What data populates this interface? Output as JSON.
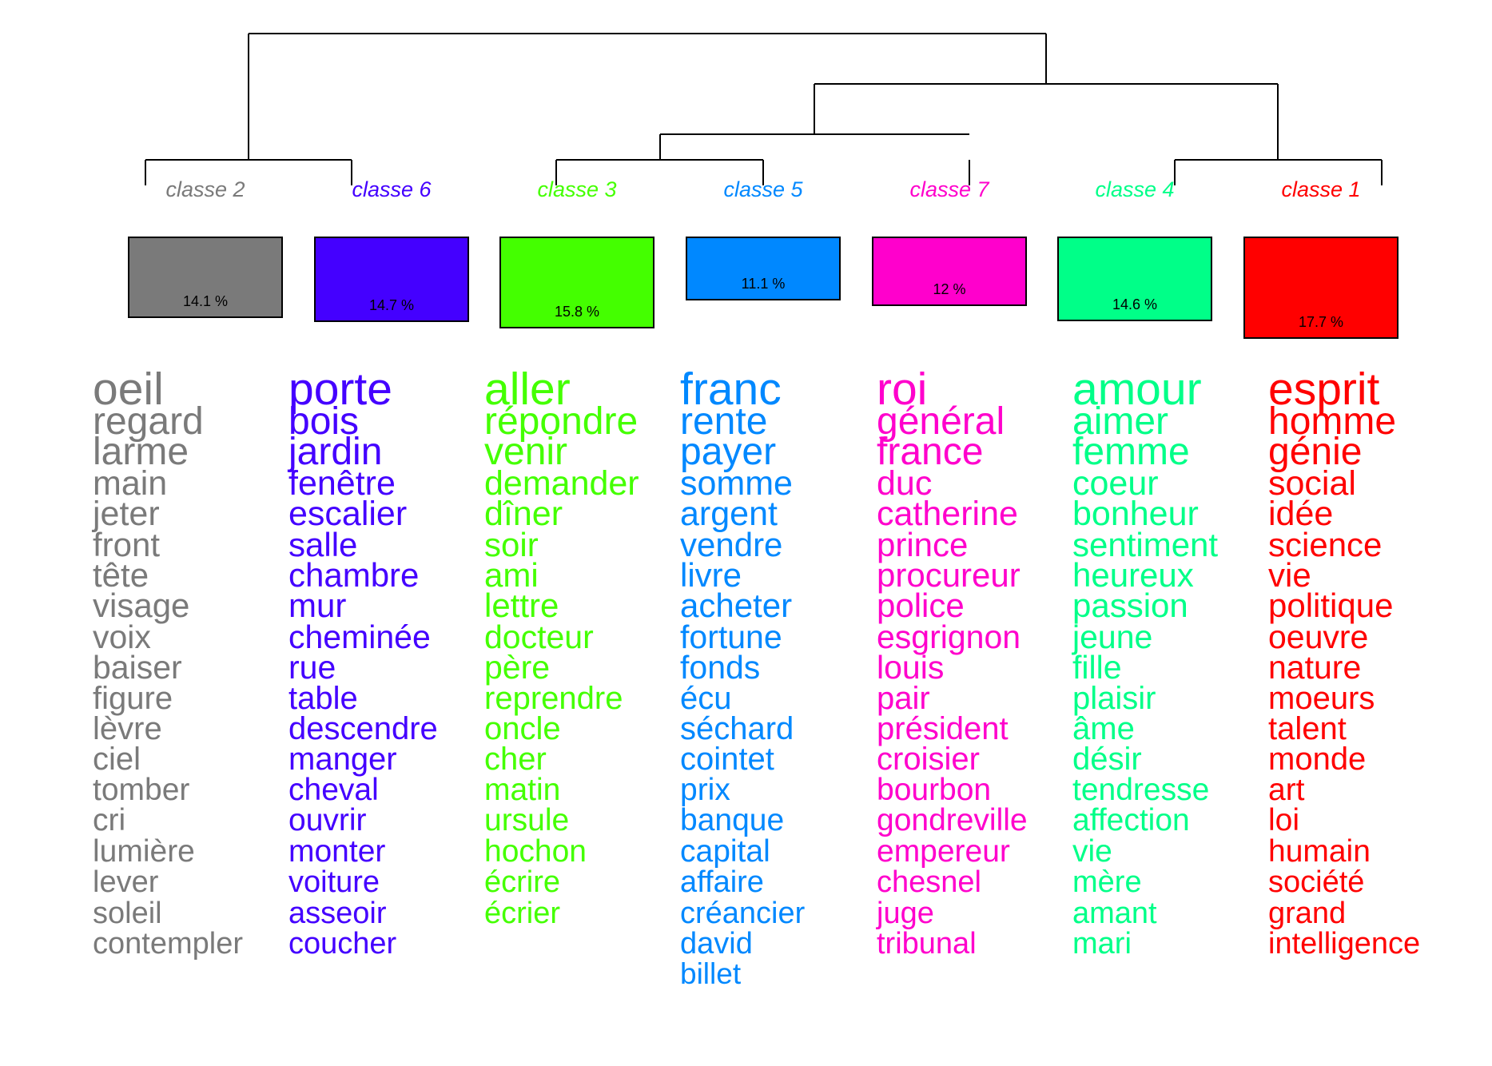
{
  "classes": [
    {
      "label": "classe  2",
      "percent": "14.1 %",
      "share": 14.1,
      "color": "#7a7a7a",
      "words": [
        "oeil",
        "regard",
        "larme",
        "main",
        "jeter",
        "front",
        "tête",
        "visage",
        "voix",
        "baiser",
        "figure",
        "lèvre",
        "ciel",
        "tomber",
        "cri",
        "lumière",
        "lever",
        "soleil",
        "contempler"
      ]
    },
    {
      "label": "classe  6",
      "percent": "14.7 %",
      "share": 14.7,
      "color": "#4400ff",
      "words": [
        "porte",
        "bois",
        "jardin",
        "fenêtre",
        "escalier",
        "salle",
        "chambre",
        "mur",
        "cheminée",
        "rue",
        "table",
        "descendre",
        "manger",
        "cheval",
        "ouvrir",
        "monter",
        "voiture",
        "asseoir",
        "coucher"
      ]
    },
    {
      "label": "classe  3",
      "percent": "15.8 %",
      "share": 15.8,
      "color": "#44ff00",
      "words": [
        "aller",
        "répondre",
        "venir",
        "demander",
        "dîner",
        "soir",
        "ami",
        "lettre",
        "docteur",
        "père",
        "reprendre",
        "oncle",
        "cher",
        "matin",
        "ursule",
        "hochon",
        "écrire",
        "écrier"
      ]
    },
    {
      "label": "classe  5",
      "percent": "11.1 %",
      "share": 11.1,
      "color": "#0088ff",
      "words": [
        "franc",
        "rente",
        "payer",
        "somme",
        "argent",
        "vendre",
        "livre",
        "acheter",
        "fortune",
        "fonds",
        "écu",
        "séchard",
        "cointet",
        "prix",
        "banque",
        "capital",
        "affaire",
        "créancier",
        "david",
        "billet"
      ]
    },
    {
      "label": "classe  7",
      "percent": "12 %",
      "share": 12.0,
      "color": "#ff00cc",
      "words": [
        "roi",
        "général",
        "france",
        "duc",
        "catherine",
        "prince",
        "procureur",
        "police",
        "esgrignon",
        "louis",
        "pair",
        "président",
        "croisier",
        "bourbon",
        "gondreville",
        "empereur",
        "chesnel",
        "juge",
        "tribunal"
      ]
    },
    {
      "label": "classe  4",
      "percent": "14.6 %",
      "share": 14.6,
      "color": "#00ff88",
      "words": [
        "amour",
        "aimer",
        "femme",
        "coeur",
        "bonheur",
        "sentiment",
        "heureux",
        "passion",
        "jeune",
        "fille",
        "plaisir",
        "âme",
        "désir",
        "tendresse",
        "affection",
        "vie",
        "mère",
        "amant",
        "mari"
      ]
    },
    {
      "label": "classe  1",
      "percent": "17.7 %",
      "share": 17.7,
      "color": "#ff0000",
      "words": [
        "esprit",
        "homme",
        "génie",
        "social",
        "idée",
        "science",
        "vie",
        "politique",
        "oeuvre",
        "nature",
        "moeurs",
        "talent",
        "monde",
        "art",
        "loi",
        "humain",
        "société",
        "grand",
        "intelligence"
      ]
    }
  ]
}
